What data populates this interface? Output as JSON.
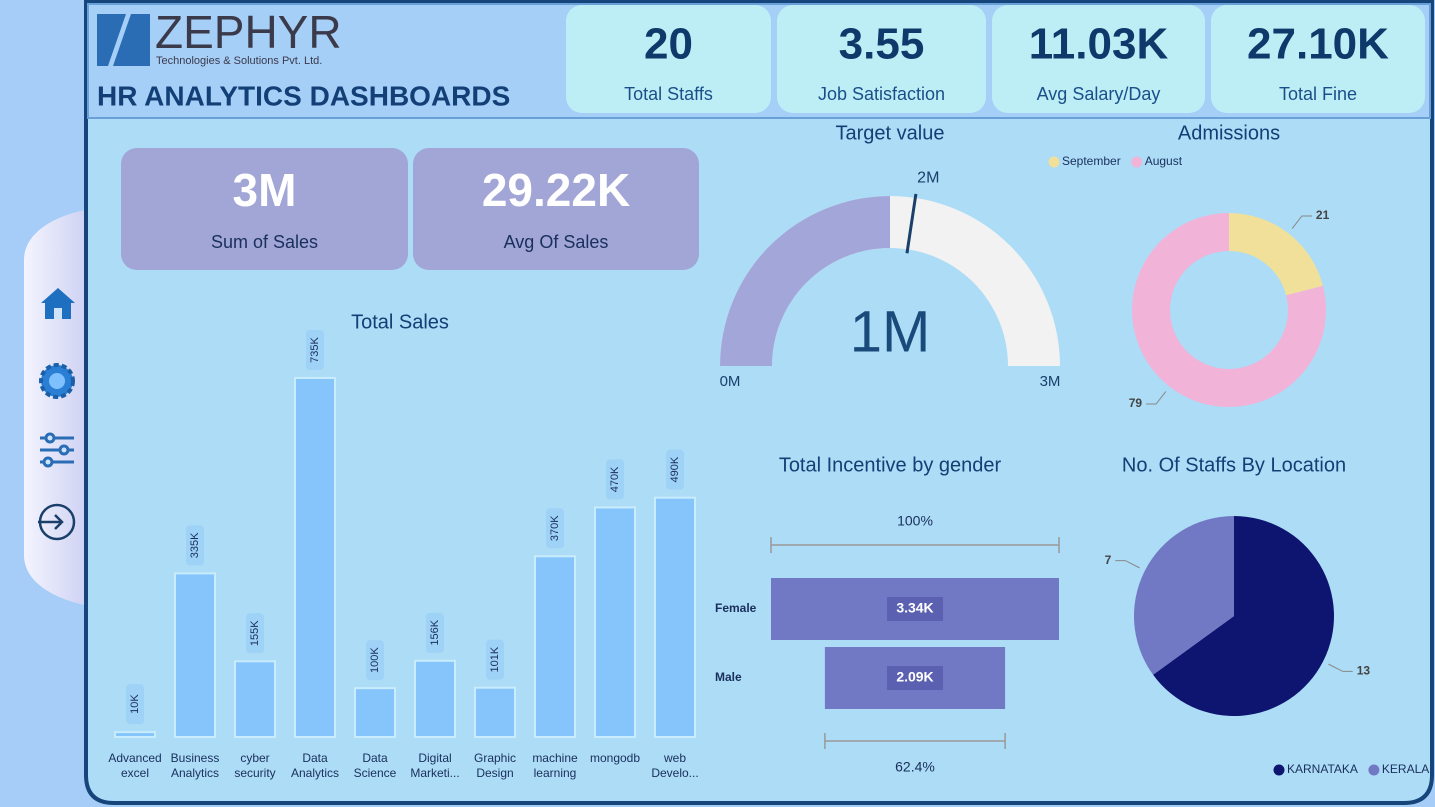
{
  "header": {
    "brand": "ZEPHYR",
    "tagline": "Technologies & Solutions Pvt. Ltd.",
    "title": "HR ANALYTICS DASHBOARDS"
  },
  "kpis": [
    {
      "value": "20",
      "label": "Total Staffs"
    },
    {
      "value": "3.55",
      "label": "Job Satisfaction"
    },
    {
      "value": "11.03K",
      "label": "Avg Salary/Day"
    },
    {
      "value": "27.10K",
      "label": "Total Fine"
    }
  ],
  "cards": [
    {
      "value": "3M",
      "label": "Sum of Sales"
    },
    {
      "value": "29.22K",
      "label": "Avg Of Sales"
    }
  ],
  "chart_data": [
    {
      "type": "bar",
      "title": "Total Sales",
      "categories": [
        "Advanced excel",
        "Business Analytics",
        "cyber security",
        "Data Analytics",
        "Data Science",
        "Digital Marketi...",
        "Graphic Design",
        "machine learning",
        "mongodb",
        "web Develo..."
      ],
      "values": [
        10000,
        335000,
        155000,
        735000,
        100000,
        156000,
        101000,
        370000,
        470000,
        490000
      ],
      "value_labels": [
        "10K",
        "335K",
        "155K",
        "735K",
        "100K",
        "156K",
        "101K",
        "370K",
        "470K",
        "490K"
      ],
      "color": "#85c5fb"
    },
    {
      "type": "gauge",
      "title": "Target value",
      "value": 1461000,
      "value_label": "1M",
      "min": {
        "value": 0,
        "label": "0M"
      },
      "max": {
        "value": 2922000,
        "label": "3M"
      },
      "target": {
        "value": 1600000,
        "label": "2M"
      },
      "colors": {
        "fill": "#a3a6d8",
        "track": "#f2f2f2",
        "target": "#1a3f6b"
      }
    },
    {
      "type": "donut",
      "title": "Admissions",
      "categories": [
        "September",
        "August"
      ],
      "values": [
        21,
        79
      ],
      "colors": [
        "#f0e09a",
        "#f2b3d9"
      ],
      "legend": "top"
    },
    {
      "type": "funnel",
      "title": "Total Incentive by gender",
      "categories": [
        "Female",
        "Male"
      ],
      "values": [
        3340,
        2090
      ],
      "value_labels": [
        "3.34K",
        "2.09K"
      ],
      "color": "#7279c4",
      "conversion": [
        {
          "value": 100,
          "label": "100%"
        },
        {
          "value": 62.4,
          "label": "62.4%"
        }
      ]
    },
    {
      "type": "pie",
      "title": "No. Of Staffs By Location",
      "categories": [
        "KARNATAKA",
        "KERALA"
      ],
      "values": [
        13,
        7
      ],
      "colors": [
        "#0e1570",
        "#7279c4"
      ],
      "legend": "bottom-right"
    }
  ]
}
